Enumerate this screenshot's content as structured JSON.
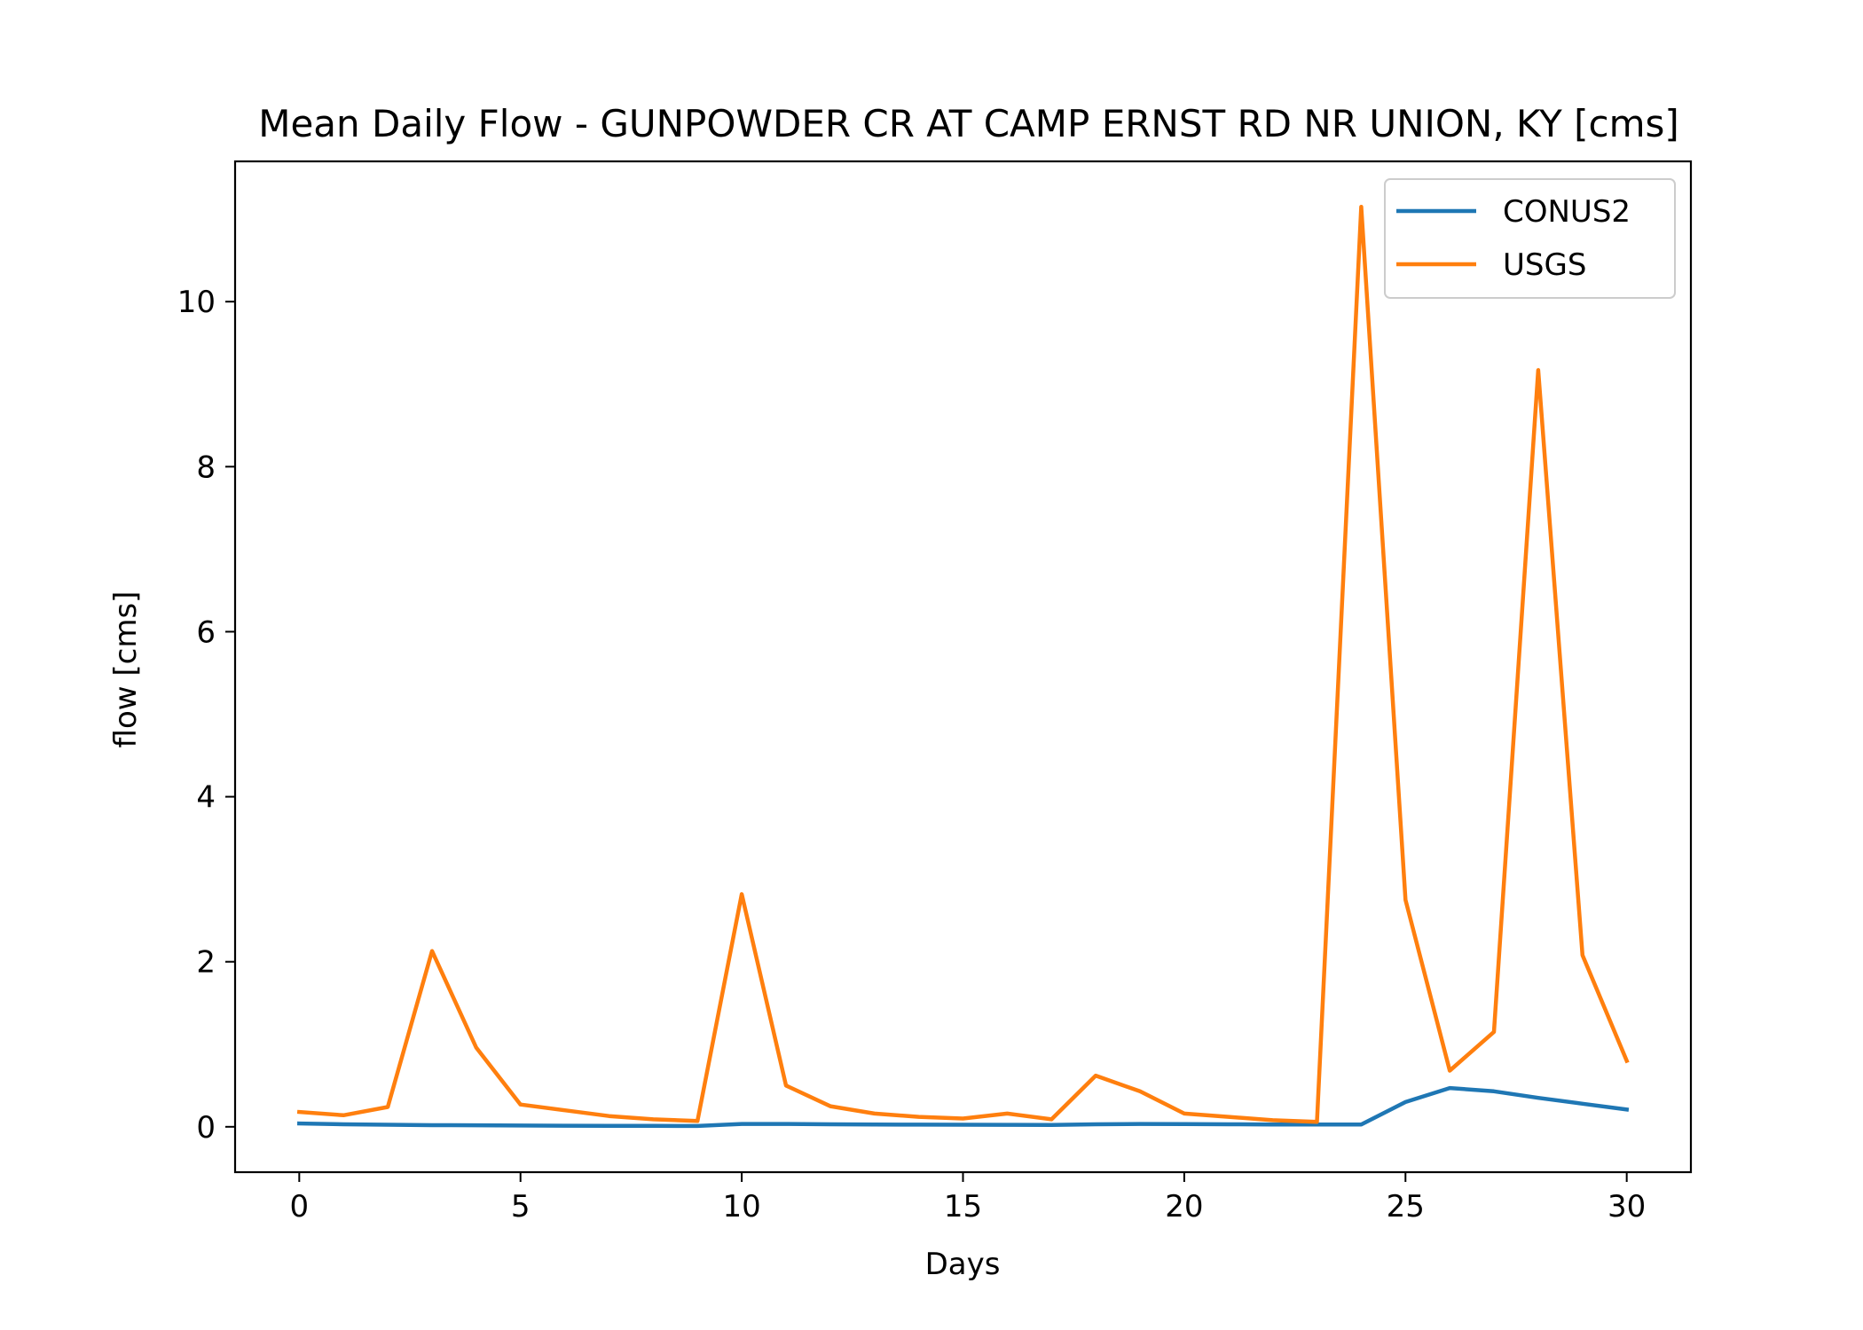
{
  "chart_data": {
    "type": "line",
    "title": "Mean Daily Flow - GUNPOWDER CR AT CAMP ERNST RD NR UNION, KY [cms]",
    "xlabel": "Days",
    "ylabel": "flow [cms]",
    "xlim": [
      -1.45,
      31.45
    ],
    "ylim": [
      -0.55,
      11.7
    ],
    "xticks": [
      0,
      5,
      10,
      15,
      20,
      25,
      30
    ],
    "yticks": [
      0,
      2,
      4,
      6,
      8,
      10
    ],
    "grid": false,
    "legend_position": "top-right",
    "x": [
      0,
      1,
      2,
      3,
      4,
      5,
      6,
      7,
      8,
      9,
      10,
      11,
      12,
      13,
      14,
      15,
      16,
      17,
      18,
      19,
      20,
      21,
      22,
      23,
      24,
      25,
      26,
      27,
      28,
      29,
      30
    ],
    "series": [
      {
        "name": "CONUS2",
        "color": "#1f77b4",
        "values": [
          0.04,
          0.03,
          0.025,
          0.02,
          0.018,
          0.015,
          0.013,
          0.012,
          0.011,
          0.01,
          0.035,
          0.035,
          0.03,
          0.028,
          0.026,
          0.025,
          0.024,
          0.023,
          0.03,
          0.035,
          0.033,
          0.03,
          0.028,
          0.027,
          0.028,
          0.3,
          0.47,
          0.43,
          0.35,
          0.28,
          0.21
        ]
      },
      {
        "name": "USGS",
        "color": "#ff7f0e",
        "values": [
          0.18,
          0.14,
          0.24,
          2.13,
          0.96,
          0.27,
          0.2,
          0.13,
          0.09,
          0.07,
          2.82,
          0.5,
          0.25,
          0.16,
          0.12,
          0.1,
          0.16,
          0.09,
          0.62,
          0.43,
          0.16,
          0.12,
          0.08,
          0.06,
          11.15,
          2.75,
          0.68,
          1.15,
          9.17,
          2.08,
          0.8
        ]
      }
    ]
  }
}
